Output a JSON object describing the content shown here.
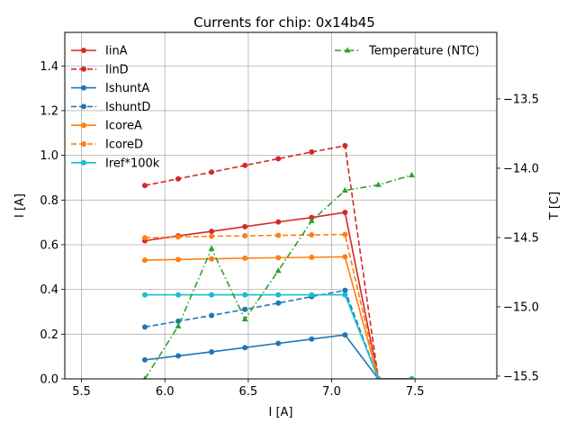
{
  "chart_data": {
    "type": "line",
    "title": "Currents for chip: 0x14b45",
    "xlabel": "I [A]",
    "ylabel": "I [A]",
    "ylabel_right": "T [C]",
    "xlim": [
      5.4,
      7.99
    ],
    "ylim": [
      0,
      1.55
    ],
    "ylim_right": [
      -15.52,
      -13.02
    ],
    "xticks": [
      "5.5",
      "6.0",
      "6.5",
      "7.0",
      "7.5"
    ],
    "xtick_values": [
      5.5,
      6.0,
      6.5,
      7.0,
      7.5
    ],
    "yticks": [
      "0.0",
      "0.2",
      "0.4",
      "0.6",
      "0.8",
      "1.0",
      "1.2",
      "1.4"
    ],
    "ytick_values": [
      0.0,
      0.2,
      0.4,
      0.6,
      0.8,
      1.0,
      1.2,
      1.4
    ],
    "yticks_right": [
      "−15.5",
      "−15.0",
      "−14.5",
      "−14.0",
      "−13.5"
    ],
    "ytick_right_values": [
      -15.5,
      -15.0,
      -14.5,
      -14.0,
      -13.5
    ],
    "grid": true,
    "legend_left": "top-left",
    "legend_right": "top-right",
    "x": [
      5.88,
      6.08,
      6.28,
      6.48,
      6.68,
      6.88,
      7.08,
      7.28,
      7.48
    ],
    "series": [
      {
        "name": "IinA",
        "color": "#d62728",
        "dash": "solid",
        "marker": "circle",
        "axis": "left",
        "values": [
          0.618,
          0.64,
          0.66,
          0.681,
          0.702,
          0.722,
          0.745,
          0.0,
          0.0
        ]
      },
      {
        "name": "IinD",
        "color": "#d62728",
        "dash": "dashed",
        "marker": "circle",
        "axis": "left",
        "values": [
          0.865,
          0.895,
          0.925,
          0.955,
          0.985,
          1.015,
          1.043,
          0.0,
          0.0
        ]
      },
      {
        "name": "IshuntA",
        "color": "#1f77b4",
        "dash": "solid",
        "marker": "circle",
        "axis": "left",
        "values": [
          0.085,
          0.103,
          0.121,
          0.14,
          0.159,
          0.178,
          0.197,
          0.0,
          0.0
        ]
      },
      {
        "name": "IshuntD",
        "color": "#1f77b4",
        "dash": "dashed",
        "marker": "circle",
        "axis": "left",
        "values": [
          0.232,
          0.258,
          0.284,
          0.311,
          0.339,
          0.368,
          0.396,
          0.0,
          0.0
        ]
      },
      {
        "name": "IcoreA",
        "color": "#ff7f0e",
        "dash": "solid",
        "marker": "circle",
        "axis": "left",
        "values": [
          0.531,
          0.534,
          0.537,
          0.54,
          0.542,
          0.544,
          0.546,
          0.0,
          0.0
        ]
      },
      {
        "name": "IcoreD",
        "color": "#ff7f0e",
        "dash": "dashed",
        "marker": "circle",
        "axis": "left",
        "values": [
          0.631,
          0.635,
          0.638,
          0.64,
          0.642,
          0.644,
          0.646,
          0.0,
          0.0
        ]
      },
      {
        "name": "Iref*100k",
        "color": "#17becf",
        "dash": "solid",
        "marker": "circle",
        "axis": "left",
        "values": [
          0.376,
          0.376,
          0.376,
          0.376,
          0.376,
          0.376,
          0.376,
          0.0,
          0.0
        ]
      },
      {
        "name": "Temperature (NTC)",
        "color": "#2ca02c",
        "dash": "dashdot",
        "marker": "triangle",
        "axis": "right",
        "values": [
          -15.52,
          -15.14,
          -14.58,
          -15.09,
          -14.74,
          -14.38,
          -14.16,
          -14.12,
          -14.05
        ]
      }
    ]
  }
}
